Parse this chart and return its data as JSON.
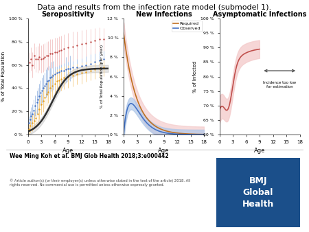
{
  "title": "Data and results from the infection rate model (submodel 1).",
  "title_fontsize": 8,
  "panel1_title": "Seropositivity",
  "panel2_title": "New Infections",
  "panel3_title": "Asymptomatic Infections",
  "panel1_ylabel": "% of Total Population",
  "panel2_ylabel": "% of Total Population (per year)",
  "panel3_ylabel": "% of Infected",
  "xlabel": "Age",
  "panel1_yticks": [
    0,
    20,
    40,
    60,
    80,
    100
  ],
  "panel1_ytick_labels": [
    "0 %",
    "20 %",
    "40 %",
    "60 %",
    "80 %",
    "100 %"
  ],
  "panel2_yticks": [
    0,
    2,
    4,
    6,
    8,
    10,
    12
  ],
  "panel2_ytick_labels": [
    "0 %",
    "2 %",
    "4 %",
    "6 %",
    "8 %",
    "10 %",
    "12 %"
  ],
  "panel3_yticks": [
    60,
    65,
    70,
    75,
    80,
    85,
    90,
    95,
    100
  ],
  "panel3_ytick_labels": [
    "60 %",
    "65 %",
    "70 %",
    "75 %",
    "80 %",
    "85 %",
    "90 %",
    "95 %",
    "100 %"
  ],
  "xticks": [
    0,
    3,
    6,
    9,
    12,
    15,
    18
  ],
  "footer_text": "Wee Ming Koh et al. BMJ Glob Health 2018;3:e000442",
  "copyright_text": "© Article author(s) (or their employer(s) unless otherwise stated in the text of the article) 2018. All\nrights reserved. No commercial use is permitted unless otherwise expressly granted.",
  "bmj_box_color": "#1B4F8A",
  "bmj_text": "BMJ\nGlobal\nHealth",
  "panel1_curve_color": "#2F2F2F",
  "panel1_scatter_blue": "#4472C4",
  "panel1_scatter_red": "#C0504D",
  "panel1_scatter_orange": "#E8A020",
  "panel1_ci_blue": "#AEC6E8",
  "panel1_ci_red": "#F4CCCC",
  "panel2_required_color": "#C07020",
  "panel2_observed_color": "#4472C4",
  "panel2_required_ci": "#F4CCCC",
  "panel2_observed_ci": "#AEC6E8",
  "panel3_line_color": "#C0504D",
  "panel3_ci_color": "#F4CCCC",
  "panel3_arrow_color": "#555555"
}
